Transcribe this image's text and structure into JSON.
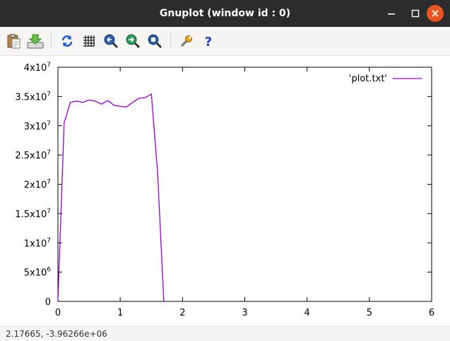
{
  "window": {
    "title": "Gnuplot (window id : 0)",
    "controls": [
      "minimize-icon",
      "maximize-icon",
      "close-icon"
    ]
  },
  "toolbar": {
    "buttons": [
      {
        "name": "copy-to-clipboard-button",
        "icon": "clipboard-icon"
      },
      {
        "name": "export-button",
        "icon": "export-download-icon"
      },
      {
        "name": "replot-button",
        "icon": "refresh-icon"
      },
      {
        "name": "grid-button",
        "icon": "grid-icon"
      },
      {
        "name": "zoom-previous-button",
        "icon": "zoom-previous-icon"
      },
      {
        "name": "zoom-next-button",
        "icon": "zoom-next-icon"
      },
      {
        "name": "autoscale-button",
        "icon": "autoscale-icon"
      },
      {
        "name": "settings-button",
        "icon": "wrench-icon"
      },
      {
        "name": "help-button",
        "icon": "help-icon"
      }
    ]
  },
  "chart_data": {
    "type": "line",
    "x": [
      0,
      0.1,
      0.2,
      0.3,
      0.4,
      0.5,
      0.6,
      0.7,
      0.8,
      0.9,
      1.0,
      1.1,
      1.2,
      1.3,
      1.4,
      1.5,
      1.6,
      1.7
    ],
    "series": [
      {
        "name": "'plot.txt'",
        "color": "#9400d3",
        "values": [
          0,
          30500000,
          34000000,
          34200000,
          34000000,
          34400000,
          34200000,
          33700000,
          34300000,
          33500000,
          33300000,
          33200000,
          34000000,
          34700000,
          34800000,
          35400000,
          22000000,
          0
        ]
      }
    ],
    "xlim": [
      0,
      6
    ],
    "ylim": [
      0,
      40000000
    ],
    "xticks": [
      0,
      1,
      2,
      3,
      4,
      5,
      6
    ],
    "yticks": [
      {
        "value": 0,
        "mant": "0",
        "exp": ""
      },
      {
        "value": 5000000,
        "mant": "5x10",
        "exp": "6"
      },
      {
        "value": 10000000,
        "mant": "1x10",
        "exp": "7"
      },
      {
        "value": 15000000,
        "mant": "1.5x10",
        "exp": "7"
      },
      {
        "value": 20000000,
        "mant": "2x10",
        "exp": "7"
      },
      {
        "value": 25000000,
        "mant": "2.5x10",
        "exp": "7"
      },
      {
        "value": 30000000,
        "mant": "3x10",
        "exp": "7"
      },
      {
        "value": 35000000,
        "mant": "3.5x10",
        "exp": "7"
      },
      {
        "value": 40000000,
        "mant": "4x10",
        "exp": "7"
      }
    ],
    "title": "",
    "xlabel": "",
    "ylabel": "",
    "grid": false,
    "legend_position": "top-right"
  },
  "status": {
    "coordinates": "2.17665, -3.96266e+06"
  }
}
